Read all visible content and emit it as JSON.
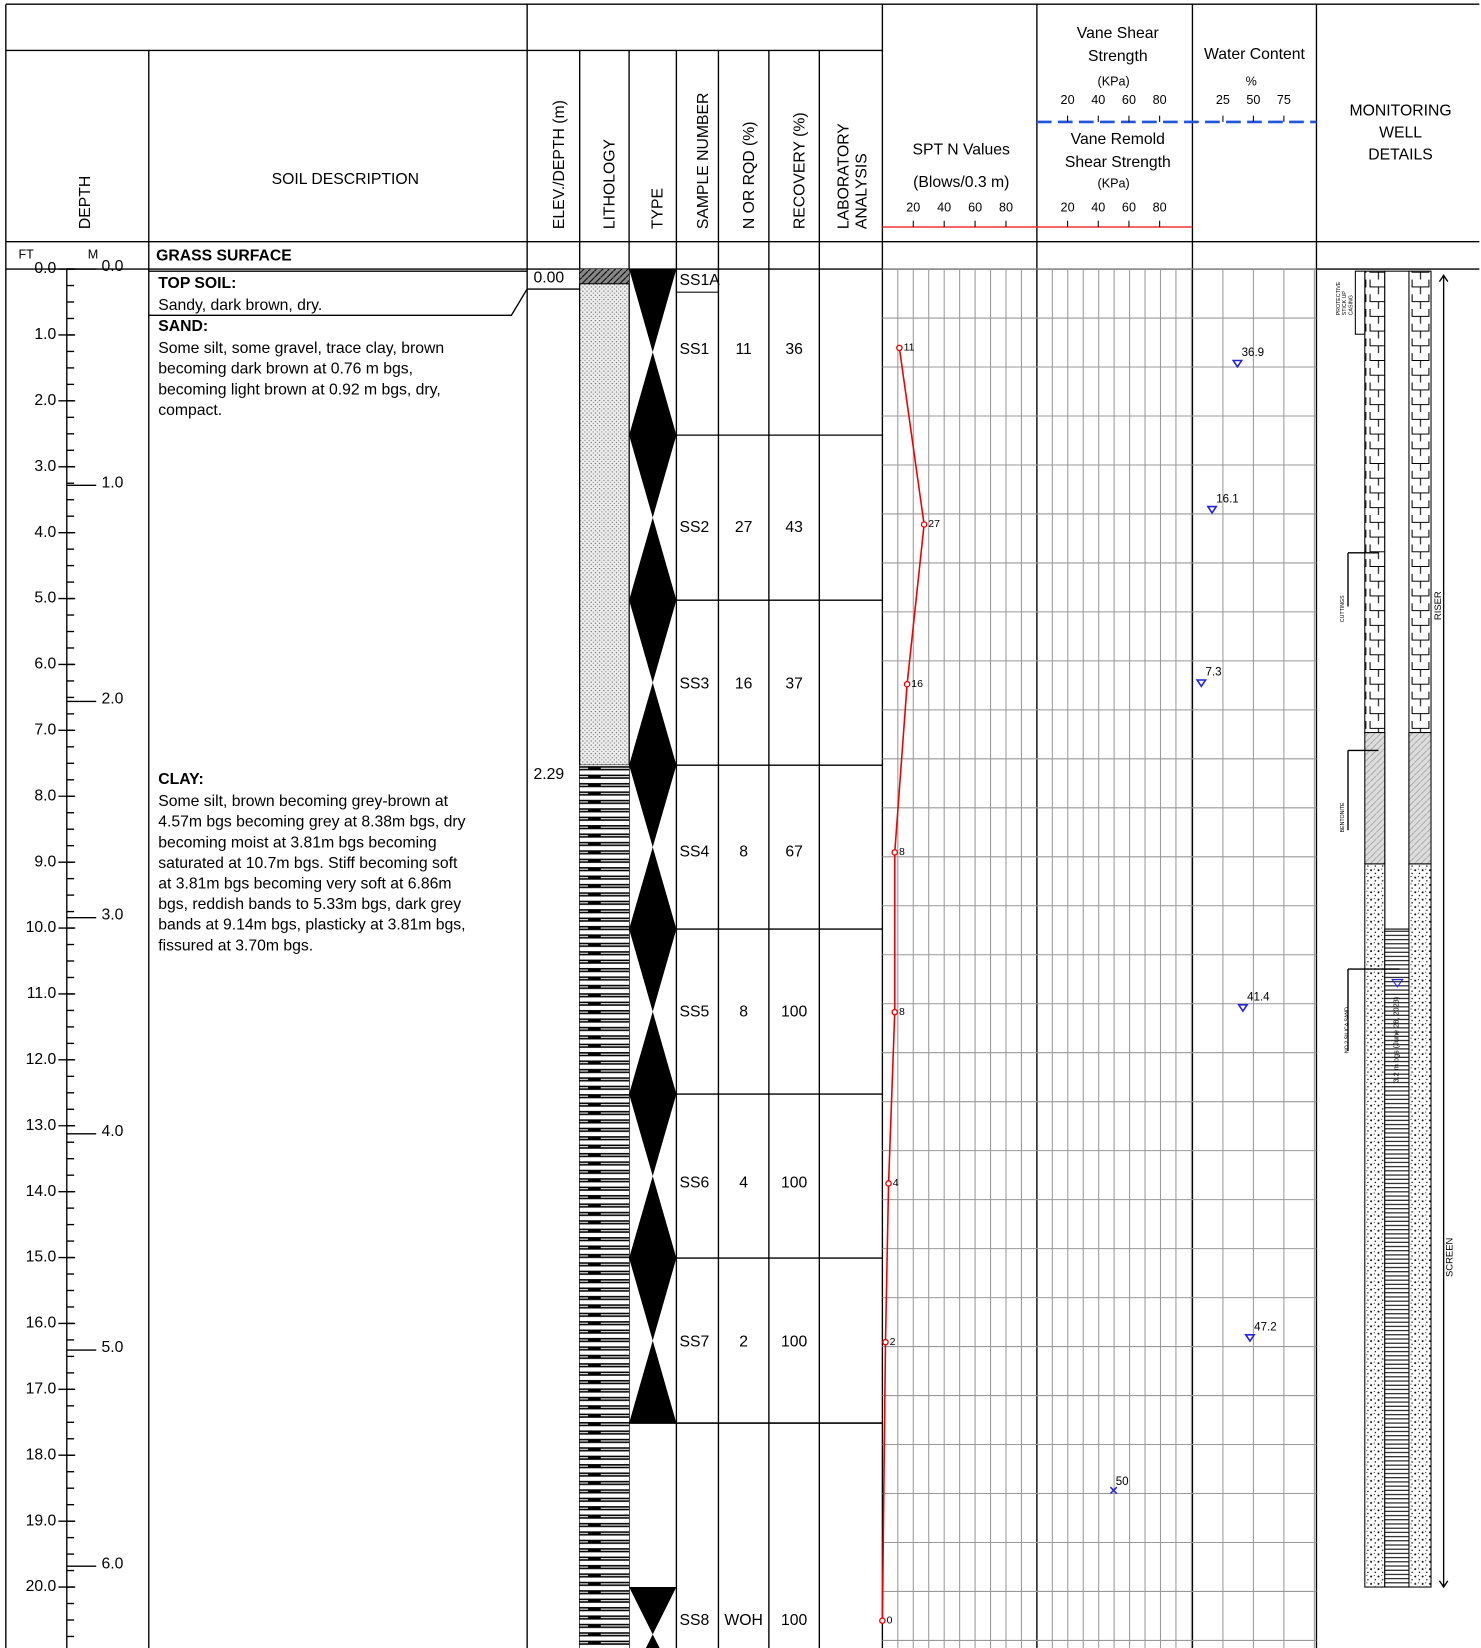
{
  "header": {
    "depth": "DEPTH",
    "soil_description": "SOIL DESCRIPTION",
    "elev_depth": "ELEV./DEPTH (m)",
    "lithology": "LITHOLOGY",
    "type": "TYPE",
    "sample_number": "SAMPLE NUMBER",
    "n_or_rqd": "N OR RQD (%)",
    "recovery": "RECOVERY (%)",
    "lab": [
      "LABORATORY",
      "ANALYSIS"
    ],
    "spt_title": "SPT N Values",
    "spt_units": "(Blows/0.3 m)",
    "spt_ticks": [
      20,
      40,
      60,
      80
    ],
    "vane_title": [
      "Vane Shear",
      "Strength"
    ],
    "vane_units": "(KPa)",
    "vane_ticks": [
      20,
      40,
      60,
      80
    ],
    "remold_title": [
      "Vane Remold",
      "Shear  Strength"
    ],
    "remold_units": "(KPa)",
    "remold_ticks": [
      20,
      40,
      60,
      80
    ],
    "water_title": "Water Content",
    "water_units": "%",
    "water_ticks": [
      25,
      50,
      75
    ],
    "well_title": [
      "MONITORING",
      "WELL",
      "DETAILS"
    ],
    "ft": "FT",
    "m": "M"
  },
  "depth_ft": [
    {
      "value": 0,
      "label": "0.0"
    },
    {
      "value": 1,
      "label": "1.0"
    },
    {
      "value": 2,
      "label": "2.0"
    },
    {
      "value": 3,
      "label": "3.0"
    },
    {
      "value": 4,
      "label": "4.0"
    },
    {
      "value": 5,
      "label": "5.0"
    },
    {
      "value": 6,
      "label": "6.0"
    },
    {
      "value": 7,
      "label": "7.0"
    },
    {
      "value": 8,
      "label": "8.0"
    },
    {
      "value": 9,
      "label": "9.0"
    },
    {
      "value": 10,
      "label": "10.0"
    },
    {
      "value": 11,
      "label": "11.0"
    },
    {
      "value": 12,
      "label": "12.0"
    },
    {
      "value": 13,
      "label": "13.0"
    },
    {
      "value": 14,
      "label": "14.0"
    },
    {
      "value": 15,
      "label": "15.0"
    },
    {
      "value": 16,
      "label": "16.0"
    },
    {
      "value": 17,
      "label": "17.0"
    },
    {
      "value": 18,
      "label": "18.0"
    },
    {
      "value": 19,
      "label": "19.0"
    },
    {
      "value": 20,
      "label": "20.0"
    }
  ],
  "depth_m": [
    {
      "value": 0,
      "label": "0.0"
    },
    {
      "value": 1,
      "label": "1.0"
    },
    {
      "value": 2,
      "label": "2.0"
    },
    {
      "value": 3,
      "label": "3.0"
    },
    {
      "value": 4,
      "label": "4.0"
    },
    {
      "value": 5,
      "label": "5.0"
    },
    {
      "value": 6,
      "label": "6.0"
    }
  ],
  "surface": "GRASS SURFACE",
  "strata": [
    {
      "title": "TOP SOIL:",
      "lines": [
        "Sandy, dark brown, dry."
      ],
      "elev": "0.00"
    },
    {
      "title": "SAND:",
      "lines": [
        "Some silt, some gravel, trace clay, brown",
        "becoming dark brown at 0.76 m bgs,",
        "becoming light brown at 0.92 m bgs, dry,",
        "compact."
      ]
    },
    {
      "title": "CLAY:",
      "lines": [
        "Some silt, brown becoming grey-brown at",
        "4.57m bgs becoming grey at 8.38m bgs, dry",
        "becoming moist at 3.81m bgs becoming",
        "saturated at 10.7m bgs. Stiff becoming soft",
        "at 3.81m bgs becoming very soft at 6.86m",
        "bgs, reddish bands to 5.33m bgs, dark grey",
        "bands at 9.14m bgs, plasticky at 3.81m bgs,",
        "fissured at 3.70m bgs."
      ],
      "elev": "2.29"
    }
  ],
  "samples": [
    {
      "number": "SS1A"
    },
    {
      "number": "SS1",
      "n": "11",
      "recovery": "36"
    },
    {
      "number": "SS2",
      "n": "27",
      "recovery": "43"
    },
    {
      "number": "SS3",
      "n": "16",
      "recovery": "37"
    },
    {
      "number": "SS4",
      "n": "8",
      "recovery": "67"
    },
    {
      "number": "SS5",
      "n": "8",
      "recovery": "100"
    },
    {
      "number": "SS6",
      "n": "4",
      "recovery": "100"
    },
    {
      "number": "SS7",
      "n": "2",
      "recovery": "100"
    },
    {
      "number": "SS8",
      "n": "WOH",
      "recovery": "100"
    }
  ],
  "spt_values": [
    11,
    27,
    16,
    8,
    8,
    4,
    2,
    0
  ],
  "water_content": [
    36.9,
    16.1,
    7.3,
    41.4,
    47.2
  ],
  "vane_values": [
    50
  ],
  "well": {
    "casing": [
      "PROTECTIVE",
      "STICK UP",
      "CASING"
    ],
    "cuttings": "CUTTINGS",
    "bentonite": "BENTONITE",
    "sand": "NO.2 SILICA SAND",
    "water_level": "3.2 m bgs (June 28, 2023)",
    "riser": "RISER",
    "screen": "SCREEN"
  }
}
